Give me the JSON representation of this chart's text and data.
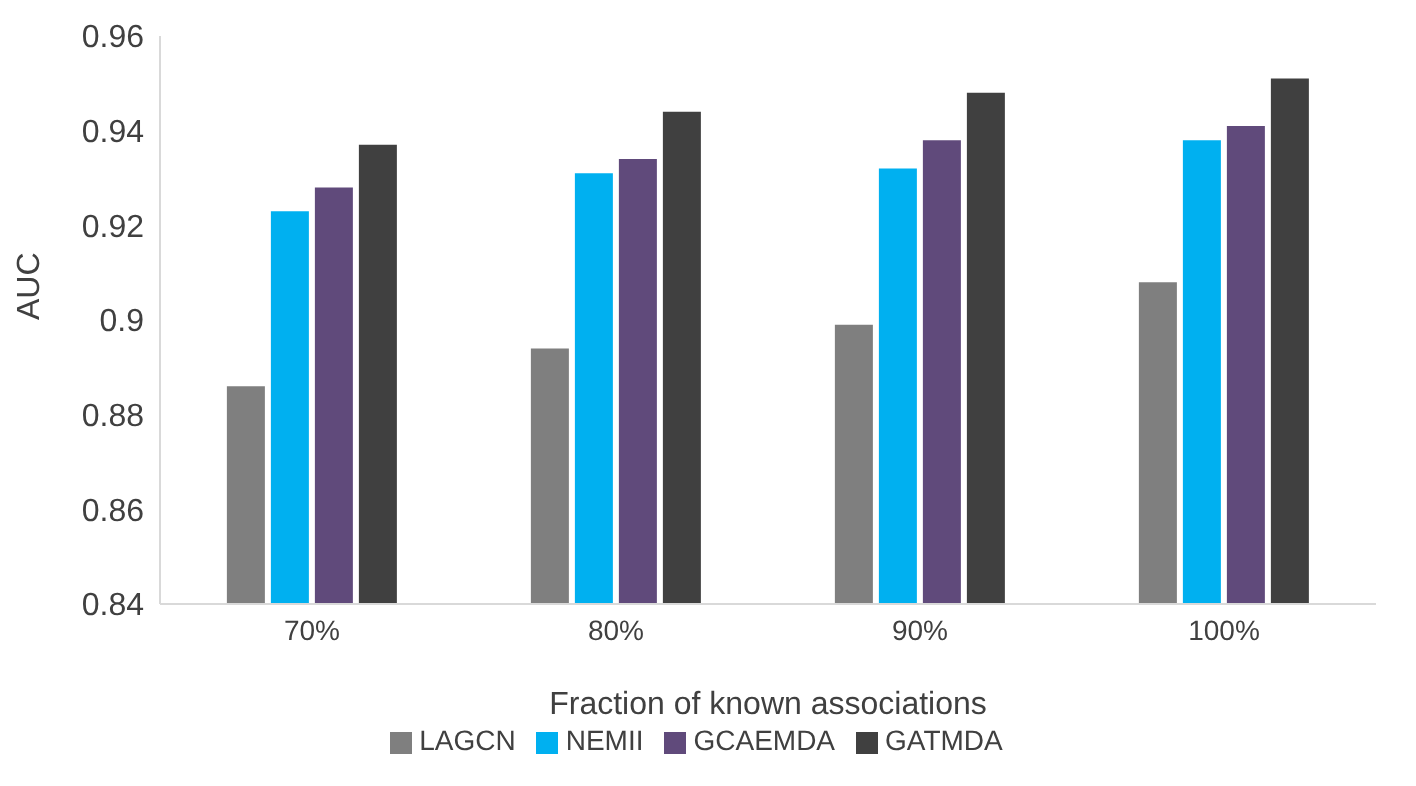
{
  "chart_data": {
    "type": "bar",
    "xlabel": "Fraction of known associations",
    "ylabel": "AUC",
    "categories": [
      "70%",
      "80%",
      "90%",
      "100%"
    ],
    "series": [
      {
        "name": "LAGCN",
        "color": "#7f7f7f",
        "values": [
          0.886,
          0.894,
          0.899,
          0.908
        ]
      },
      {
        "name": "NEMII",
        "color": "#00b0f0",
        "values": [
          0.923,
          0.931,
          0.932,
          0.938
        ]
      },
      {
        "name": "GCAEMDA",
        "color": "#604a7b",
        "values": [
          0.928,
          0.934,
          0.938,
          0.941
        ]
      },
      {
        "name": "GATMDA",
        "color": "#404040",
        "values": [
          0.937,
          0.944,
          0.948,
          0.951
        ]
      }
    ],
    "ylim": [
      0.84,
      0.96
    ],
    "yticks": [
      0.84,
      0.86,
      0.88,
      0.9,
      0.92,
      0.94,
      0.96
    ],
    "grid": false,
    "legend": "bottom"
  }
}
